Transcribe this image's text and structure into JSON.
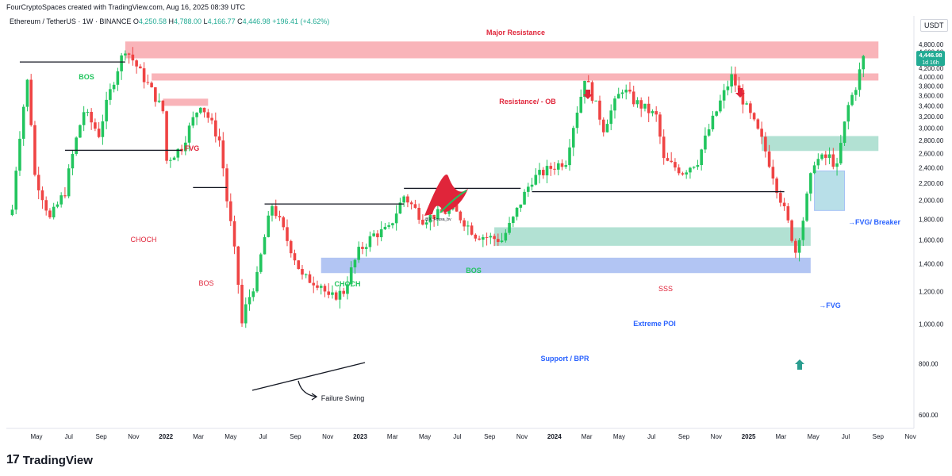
{
  "header": {
    "created_note": "FourCryptoSpaces created with TradingView.com, Aug 16, 2025 08:39 UTC",
    "symbol": "Ethereum / TetherUS · 1W · BINANCE",
    "o_label": "O",
    "o_value": "4,250.58",
    "h_label": "H",
    "h_value": "4,788.00",
    "l_label": "L",
    "l_value": "4,166.77",
    "c_label": "C",
    "c_value": "4,446.98",
    "change": "+196.41 (+4.62%)"
  },
  "currency_button": "USDT",
  "brand": {
    "name": "TradingView",
    "logo_glyph": "17"
  },
  "watermark": {
    "caption": "@X_Fousa_bv"
  },
  "price_tag": {
    "price": "4,446.98",
    "timer": "1d 16h"
  },
  "colors": {
    "up": "#22c55e",
    "down": "#ef4444",
    "resistance_zone": "#f7a1a8",
    "poi_zone": "#9fdac8",
    "support_zone": "#9fb7f0",
    "label_red": "#e0253a",
    "label_green": "#22c55e",
    "label_blue": "#2962ff",
    "label_teal": "#2a9d8f"
  },
  "chart_data": {
    "type": "candlestick",
    "x_ticks": [
      "May",
      "Jul",
      "Sep",
      "Nov",
      "2022",
      "Mar",
      "May",
      "Jul",
      "Sep",
      "Nov",
      "2023",
      "Mar",
      "May",
      "Jul",
      "Sep",
      "Nov",
      "2024",
      "Mar",
      "May",
      "Jul",
      "Sep",
      "Nov",
      "2025",
      "Mar",
      "May",
      "Jul",
      "Sep",
      "Nov"
    ],
    "y_ticks": [
      "4,800.00",
      "4,600.00",
      "4,400.00",
      "4,200.00",
      "4,000.00",
      "3,800.00",
      "3,600.00",
      "3,400.00",
      "3,200.00",
      "3,000.00",
      "2,800.00",
      "2,600.00",
      "2,400.00",
      "2,200.00",
      "2,000.00",
      "1,800.00",
      "1,600.00",
      "1,400.00",
      "1,200.00",
      "1,000.00",
      "800.00",
      "600.00"
    ],
    "y_tick_values": [
      4800,
      4600,
      4400,
      4200,
      4000,
      3800,
      3600,
      3400,
      3200,
      3000,
      2800,
      2600,
      2400,
      2200,
      2000,
      1800,
      1600,
      1400,
      1200,
      1000,
      800,
      600
    ],
    "ylim": [
      500,
      5000
    ],
    "x_range": [
      "2021-04-01",
      "2025-11-10"
    ],
    "grid": false,
    "price_path": [
      [
        "2021-04-12",
        1900
      ],
      [
        "2021-05-10",
        3900
      ],
      [
        "2021-05-24",
        2300
      ],
      [
        "2021-06-21",
        1800
      ],
      [
        "2021-07-19",
        2100
      ],
      [
        "2021-08-23",
        3300
      ],
      [
        "2021-09-20",
        2900
      ],
      [
        "2021-10-25",
        4200
      ],
      [
        "2021-11-08",
        4700
      ],
      [
        "2021-12-06",
        4100
      ],
      [
        "2022-01-17",
        3300
      ],
      [
        "2022-01-24",
        2500
      ],
      [
        "2022-02-21",
        2700
      ],
      [
        "2022-03-28",
        3450
      ],
      [
        "2022-05-02",
        2800
      ],
      [
        "2022-05-16",
        2000
      ],
      [
        "2022-06-13",
        1000
      ],
      [
        "2022-06-20",
        1100
      ],
      [
        "2022-07-11",
        1300
      ],
      [
        "2022-08-08",
        1950
      ],
      [
        "2022-09-05",
        1600
      ],
      [
        "2022-10-03",
        1300
      ],
      [
        "2022-11-07",
        1250
      ],
      [
        "2022-11-21",
        1150
      ],
      [
        "2022-12-19",
        1200
      ],
      [
        "2023-01-16",
        1500
      ],
      [
        "2023-02-13",
        1650
      ],
      [
        "2023-03-13",
        1700
      ],
      [
        "2023-04-10",
        2050
      ],
      [
        "2023-05-15",
        1800
      ],
      [
        "2023-07-10",
        1900
      ],
      [
        "2023-08-21",
        1650
      ],
      [
        "2023-10-09",
        1600
      ],
      [
        "2023-10-30",
        1800
      ],
      [
        "2023-12-04",
        2250
      ],
      [
        "2024-01-08",
        2400
      ],
      [
        "2024-02-05",
        2500
      ],
      [
        "2024-03-04",
        3600
      ],
      [
        "2024-03-11",
        4000
      ],
      [
        "2024-04-15",
        3000
      ],
      [
        "2024-05-20",
        3750
      ],
      [
        "2024-06-10",
        3500
      ],
      [
        "2024-07-22",
        3200
      ],
      [
        "2024-08-05",
        2500
      ],
      [
        "2024-09-09",
        2350
      ],
      [
        "2024-10-07",
        2500
      ],
      [
        "2024-11-11",
        3300
      ],
      [
        "2024-12-09",
        4000
      ],
      [
        "2025-01-06",
        3350
      ],
      [
        "2025-02-03",
        2800
      ],
      [
        "2025-03-03",
        2150
      ],
      [
        "2025-04-07",
        1500
      ],
      [
        "2025-04-21",
        1800
      ],
      [
        "2025-05-12",
        2500
      ],
      [
        "2025-06-09",
        2550
      ],
      [
        "2025-06-23",
        2400
      ],
      [
        "2025-07-14",
        3400
      ],
      [
        "2025-07-28",
        3800
      ],
      [
        "2025-08-11",
        4447
      ]
    ],
    "zones": [
      {
        "label": "Major Resistance",
        "from": "2021-11-08",
        "to": "2025-09-08",
        "low": 4440,
        "high": 4880,
        "kind": "resistance"
      },
      {
        "label": "Resistance/ - OB",
        "from": "2021-12-27",
        "to": "2025-09-08",
        "low": 3920,
        "high": 4080,
        "kind": "resistance"
      },
      {
        "label": "FVG",
        "from": "2022-01-17",
        "to": "2022-04-11",
        "low": 3400,
        "high": 3540,
        "kind": "resistance"
      },
      {
        "label": "Extreme POI",
        "from": "2023-09-25",
        "to": "2025-05-05",
        "low": 1550,
        "high": 1720,
        "kind": "poi"
      },
      {
        "label": "Support / BPR",
        "from": "2022-11-07",
        "to": "2025-05-05",
        "low": 1330,
        "high": 1450,
        "kind": "support"
      },
      {
        "label": "FVG/ Breaker",
        "from": "2025-02-03",
        "to": "2025-09-08",
        "low": 2640,
        "high": 2870,
        "kind": "poi"
      },
      {
        "label": "FVG",
        "from": "2025-05-12",
        "to": "2025-07-07",
        "low": 1890,
        "high": 2360,
        "kind": "support_box"
      }
    ],
    "levels": [
      {
        "label": "BOS",
        "from": "2021-04-26",
        "to": "2021-11-08",
        "price": 4350,
        "color": "green"
      },
      {
        "label": "CHOCH",
        "from": "2021-07-19",
        "to": "2022-02-21",
        "price": 2650,
        "color": "red"
      },
      {
        "label": "BOS",
        "from": "2022-03-14",
        "to": "2022-05-16",
        "price": 2150,
        "color": "red"
      },
      {
        "label": "CHOCH",
        "from": "2022-07-25",
        "to": "2023-04-10",
        "price": 1960,
        "color": "green"
      },
      {
        "label": "BOS",
        "from": "2023-04-10",
        "to": "2023-11-13",
        "price": 2140,
        "color": "green"
      },
      {
        "label": "SSS",
        "from": "2023-12-04",
        "to": "2025-03-17",
        "price": 2100,
        "color": "red"
      }
    ],
    "annotations": [
      "Failure Swing"
    ],
    "last_price": 4446.98
  }
}
